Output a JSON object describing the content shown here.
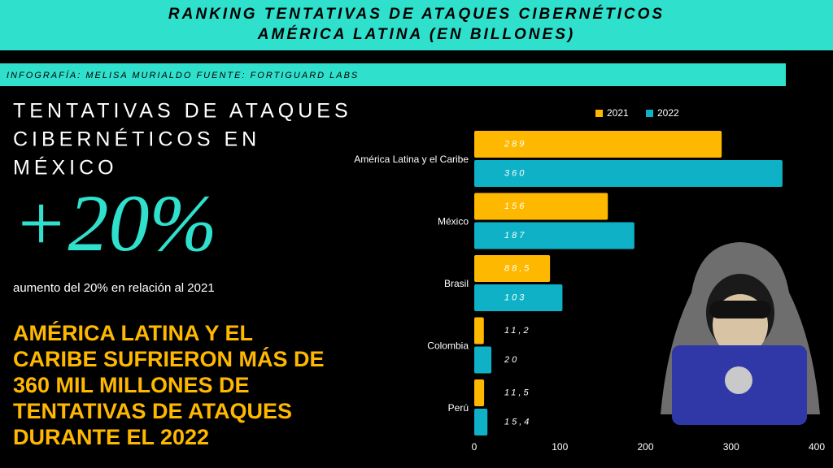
{
  "header": {
    "title_lines": [
      "RANKING TENTATIVAS DE ATAQUES CIBERNÉTICOS",
      "AMÉRICA LATINA (EN BILLONES)"
    ]
  },
  "credit": "INFOGRAFÍA: MELISA MURIALDO FUENTE:  FORTIGUARD LABS",
  "left": {
    "heading_lines": [
      "TENTATIVAS DE ATAQUES",
      "CIBERNÉTICOS EN",
      "MÉXICO"
    ],
    "big": "+20%",
    "note": "aumento del 20% en relación al 2021",
    "statement_lines": [
      "AMÉRICA LATINA Y EL",
      "CARIBE SUFRIERON MÁS DE",
      "360 MIL MILLONES DE",
      "TENTATIVAS DE ATAQUES",
      "DURANTE EL 2022"
    ]
  },
  "chart_data": {
    "type": "bar",
    "orientation": "horizontal",
    "categories": [
      "América Latina y el Caribe",
      "México",
      "Brasil",
      "Colombia",
      "Perú"
    ],
    "series": [
      {
        "name": "2021",
        "color": "#ffb800",
        "values": [
          289,
          156,
          88.5,
          11.2,
          11.5
        ],
        "value_labels": [
          "289",
          "156",
          "88,5",
          "11,2",
          "11,5"
        ]
      },
      {
        "name": "2022",
        "color": "#0fb1c6",
        "values": [
          360,
          187,
          103,
          20,
          15.4
        ],
        "value_labels": [
          "360",
          "187",
          "103",
          "20",
          "15,4"
        ]
      }
    ],
    "xlim": [
      0,
      400
    ],
    "xticks": [
      0,
      100,
      200,
      300,
      400
    ],
    "grid": false,
    "legend": "top"
  }
}
